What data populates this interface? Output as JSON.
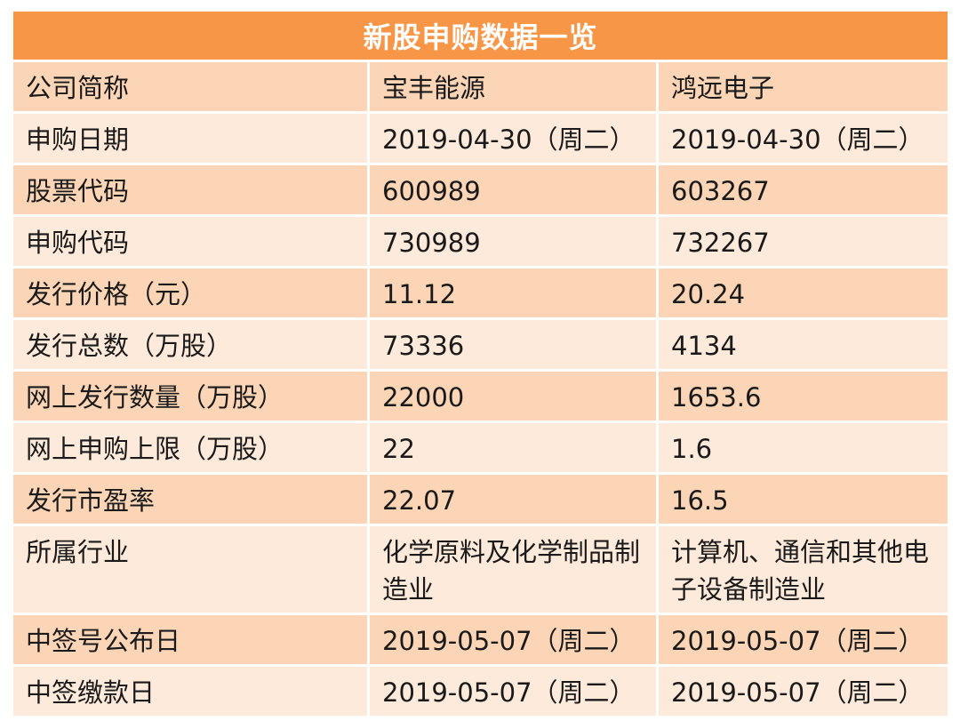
{
  "title": "新股申购数据一览",
  "rows": [
    {
      "label": "公司简称",
      "a": "宝丰能源",
      "b": "鸿远电子",
      "cn": true
    },
    {
      "label": "申购日期",
      "a": "2019-04-30（周二）",
      "b": "2019-04-30（周二）"
    },
    {
      "label": "股票代码",
      "a": " 600989",
      "b": " 603267"
    },
    {
      "label": "申购代码",
      "a": " 730989",
      "b": " 732267"
    },
    {
      "label": "发行价格（元）",
      "a": "11.12",
      "b": "20.24"
    },
    {
      "label": "发行总数（万股）",
      "a": "73336",
      "b": "4134"
    },
    {
      "label": "网上发行数量（万股）",
      "a": "22000",
      "b": "1653.6"
    },
    {
      "label": "网上申购上限（万股）",
      "a": "22",
      "b": "1.6"
    },
    {
      "label": "发行市盈率",
      "a": "22.07",
      "b": "16.5"
    },
    {
      "label": "所属行业",
      "a": "化学原料及化学制品制造业",
      "b": "计算机、通信和其他电子设备制造业",
      "cn": true,
      "tall": true
    },
    {
      "label": "中签号公布日",
      "a": "2019-05-07（周二）",
      "b": "2019-05-07（周二）"
    },
    {
      "label": "中签缴款日",
      "a": "2019-05-07（周二）",
      "b": "2019-05-07（周二）"
    }
  ],
  "colors": {
    "header": "#f79646",
    "row_odd": "#fbd5b5",
    "row_even": "#fdeada"
  }
}
